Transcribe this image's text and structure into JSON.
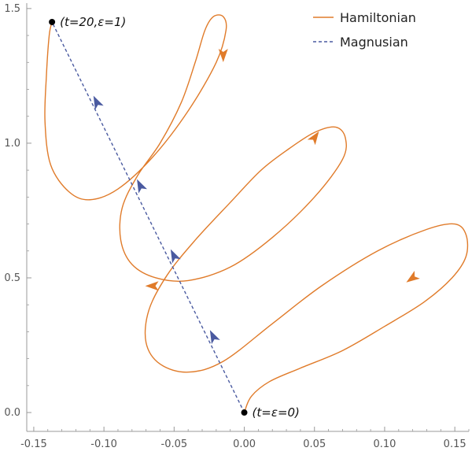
{
  "chart_data": {
    "type": "line",
    "title": "",
    "xlabel": "",
    "ylabel": "",
    "xlim": [
      -0.155,
      0.16
    ],
    "ylim": [
      -0.07,
      1.52
    ],
    "x_ticks": [
      "-0.15",
      "-0.10",
      "-0.05",
      "0.00",
      "0.05",
      "0.10",
      "0.15"
    ],
    "y_ticks": [
      "0.0",
      "0.5",
      "1.0",
      "1.5"
    ],
    "grid": false,
    "legend_position": "top-right",
    "colors": {
      "hamiltonian": "#e07b2a",
      "magnusian": "#4a5aa0",
      "axis": "#999999"
    },
    "series": [
      {
        "name": "Hamiltonian",
        "style": "solid",
        "points": [
          [
            0.0,
            0.0
          ],
          [
            0.005,
            0.06
          ],
          [
            0.018,
            0.115
          ],
          [
            0.04,
            0.165
          ],
          [
            0.07,
            0.23
          ],
          [
            0.1,
            0.32
          ],
          [
            0.128,
            0.41
          ],
          [
            0.148,
            0.5
          ],
          [
            0.158,
            0.58
          ],
          [
            0.158,
            0.66
          ],
          [
            0.15,
            0.7
          ],
          [
            0.13,
            0.68
          ],
          [
            0.095,
            0.6
          ],
          [
            0.055,
            0.47
          ],
          [
            0.02,
            0.33
          ],
          [
            -0.015,
            0.19
          ],
          [
            -0.04,
            0.15
          ],
          [
            -0.06,
            0.18
          ],
          [
            -0.07,
            0.26
          ],
          [
            -0.068,
            0.38
          ],
          [
            -0.055,
            0.51
          ],
          [
            -0.035,
            0.64
          ],
          [
            -0.01,
            0.78
          ],
          [
            0.012,
            0.9
          ],
          [
            0.032,
            0.98
          ],
          [
            0.05,
            1.04
          ],
          [
            0.065,
            1.06
          ],
          [
            0.072,
            1.02
          ],
          [
            0.07,
            0.94
          ],
          [
            0.05,
            0.8
          ],
          [
            0.02,
            0.65
          ],
          [
            -0.01,
            0.54
          ],
          [
            -0.04,
            0.49
          ],
          [
            -0.063,
            0.5
          ],
          [
            -0.08,
            0.55
          ],
          [
            -0.088,
            0.64
          ],
          [
            -0.087,
            0.76
          ],
          [
            -0.076,
            0.88
          ],
          [
            -0.06,
            1.0
          ],
          [
            -0.045,
            1.15
          ],
          [
            -0.035,
            1.3
          ],
          [
            -0.028,
            1.42
          ],
          [
            -0.022,
            1.47
          ],
          [
            -0.015,
            1.47
          ],
          [
            -0.013,
            1.42
          ],
          [
            -0.02,
            1.3
          ],
          [
            -0.04,
            1.12
          ],
          [
            -0.065,
            0.95
          ],
          [
            -0.09,
            0.83
          ],
          [
            -0.11,
            0.79
          ],
          [
            -0.125,
            0.82
          ],
          [
            -0.138,
            0.92
          ],
          [
            -0.142,
            1.08
          ],
          [
            -0.141,
            1.25
          ],
          [
            -0.139,
            1.4
          ],
          [
            -0.137,
            1.45
          ]
        ],
        "arrows": [
          {
            "x": 0.12,
            "y": 0.5,
            "direction": "down-left"
          },
          {
            "x": 0.05,
            "y": 1.02,
            "direction": "up-right"
          },
          {
            "x": -0.065,
            "y": 0.47,
            "direction": "left"
          },
          {
            "x": -0.015,
            "y": 1.33,
            "direction": "down"
          }
        ]
      },
      {
        "name": "Magnusian",
        "style": "dashed",
        "points": [
          [
            0.0,
            0.0
          ],
          [
            -0.137,
            1.45
          ]
        ],
        "arrows": [
          {
            "x": -0.022,
            "y": 0.28,
            "direction": "up"
          },
          {
            "x": -0.05,
            "y": 0.58,
            "direction": "up"
          },
          {
            "x": -0.074,
            "y": 0.84,
            "direction": "up"
          },
          {
            "x": -0.105,
            "y": 1.15,
            "direction": "up"
          }
        ]
      }
    ],
    "annotations": [
      {
        "text": "(t=20,ε=1)",
        "x": -0.137,
        "y": 1.45,
        "anchor": "right"
      },
      {
        "text": "(t=ε=0)",
        "x": 0.0,
        "y": 0.0,
        "anchor": "right"
      }
    ]
  }
}
